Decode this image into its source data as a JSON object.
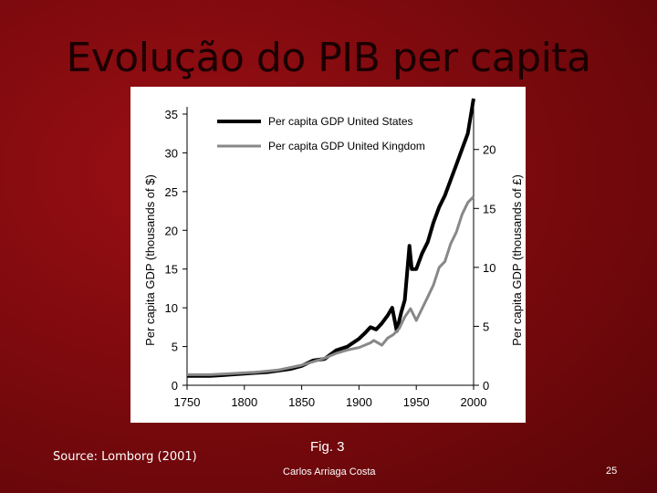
{
  "slide": {
    "title": "Evolução do PIB per capita",
    "source": "Source: Lomborg (2001)",
    "figure_label": "Fig. 3",
    "author": "Carlos Arriaga Costa",
    "page_number": "25"
  },
  "chart_data": {
    "type": "line",
    "ylabel_left": "Per capita GDP (thousands of $)",
    "ylabel_right": "Per capita GDP (thousands of £)",
    "xlim": [
      1750,
      2000
    ],
    "ylim_left": [
      0,
      35
    ],
    "ylim_right": [
      0,
      23
    ],
    "x_ticks": [
      "1750",
      "1800",
      "1850",
      "1900",
      "1950",
      "2000"
    ],
    "y_ticks_left": [
      "0",
      "5",
      "10",
      "15",
      "20",
      "25",
      "30",
      "35"
    ],
    "y_ticks_right": [
      "0",
      "5",
      "10",
      "15",
      "20"
    ],
    "legend": {
      "placement": "top"
    },
    "colors": {
      "us": "#000000",
      "uk": "#888888"
    },
    "series": [
      {
        "name": "Per capita GDP United States",
        "axis": "left",
        "x": [
          1750,
          1760,
          1770,
          1780,
          1790,
          1800,
          1810,
          1820,
          1830,
          1840,
          1850,
          1860,
          1870,
          1880,
          1890,
          1900,
          1905,
          1910,
          1915,
          1920,
          1925,
          1929,
          1933,
          1937,
          1940,
          1944,
          1946,
          1950,
          1955,
          1960,
          1965,
          1970,
          1975,
          1980,
          1985,
          1990,
          1995,
          2000
        ],
        "values": [
          1.2,
          1.2,
          1.2,
          1.3,
          1.4,
          1.5,
          1.6,
          1.7,
          1.9,
          2.1,
          2.5,
          3.2,
          3.4,
          4.5,
          5.0,
          6.0,
          6.7,
          7.5,
          7.2,
          8.0,
          9.0,
          10.0,
          7.0,
          9.5,
          11.0,
          18.0,
          15.0,
          15.0,
          17.0,
          18.5,
          21.0,
          23.0,
          24.5,
          26.5,
          28.5,
          30.5,
          32.5,
          37.0
        ]
      },
      {
        "name": "Per capita GDP United Kingdom",
        "axis": "right",
        "x": [
          1750,
          1760,
          1770,
          1780,
          1790,
          1800,
          1810,
          1820,
          1830,
          1840,
          1850,
          1860,
          1870,
          1880,
          1890,
          1900,
          1910,
          1913,
          1920,
          1925,
          1930,
          1935,
          1940,
          1945,
          1950,
          1955,
          1960,
          1965,
          1970,
          1975,
          1980,
          1985,
          1990,
          1995,
          2000
        ],
        "values": [
          0.9,
          0.9,
          0.9,
          0.95,
          1.0,
          1.05,
          1.1,
          1.2,
          1.3,
          1.5,
          1.7,
          2.0,
          2.3,
          2.7,
          3.0,
          3.2,
          3.6,
          3.8,
          3.4,
          4.0,
          4.3,
          4.8,
          5.8,
          6.5,
          5.5,
          6.5,
          7.5,
          8.5,
          10.0,
          10.5,
          12.0,
          13.0,
          14.5,
          15.5,
          16.0
        ]
      }
    ]
  }
}
